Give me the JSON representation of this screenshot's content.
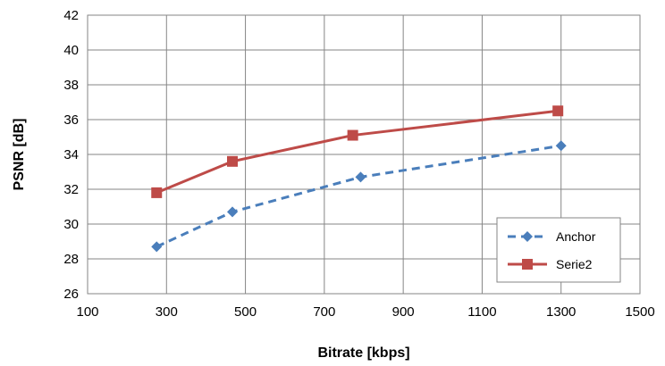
{
  "chart_data": {
    "type": "line",
    "xlabel": "Bitrate [kbps]",
    "ylabel": "PSNR  [dB]",
    "xlim": [
      100,
      1500
    ],
    "ylim": [
      26,
      42
    ],
    "xticks": [
      "100",
      "300",
      "500",
      "700",
      "900",
      "1100",
      "1300",
      "1500"
    ],
    "yticks": [
      "26",
      "28",
      "30",
      "32",
      "34",
      "36",
      "38",
      "40",
      "42"
    ],
    "grid": true,
    "legend_position": "bottom-right",
    "series": [
      {
        "name": "Anchor",
        "color": "#4A7EBB",
        "line_style": "dashed",
        "marker": "diamond",
        "points": [
          [
            275,
            28.7
          ],
          [
            467,
            30.7
          ],
          [
            792,
            32.7
          ],
          [
            1300,
            34.5
          ]
        ]
      },
      {
        "name": "Serie2",
        "color": "#BE4B48",
        "line_style": "solid",
        "marker": "square",
        "points": [
          [
            275,
            31.8
          ],
          [
            467,
            33.6
          ],
          [
            772,
            35.1
          ],
          [
            1292,
            36.5
          ]
        ]
      }
    ]
  }
}
